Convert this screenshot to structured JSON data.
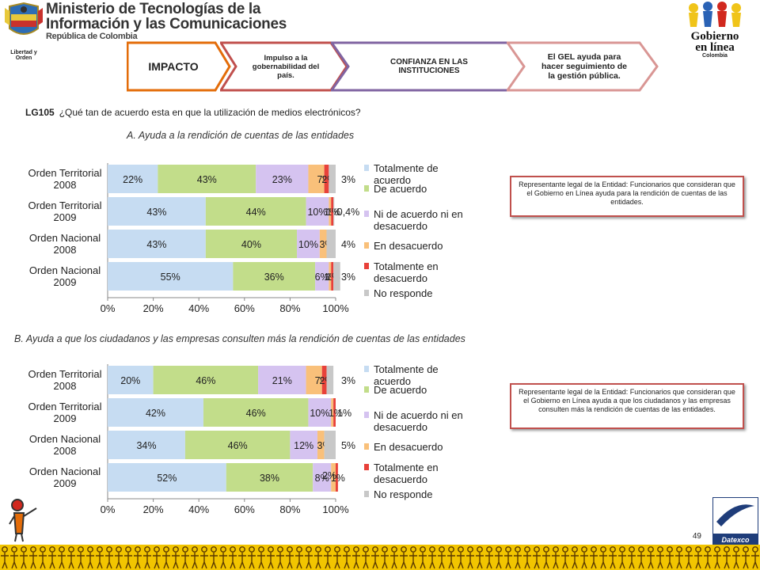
{
  "header": {
    "ministry_line1": "Ministerio de Tecnologías de la",
    "ministry_line2": "Información y las Comunicaciones",
    "ministry_line3": "República de Colombia",
    "crest_motto": "Libertad y Orden",
    "gel_logo_line1": "Gobierno en línea",
    "gel_logo_line2": "Colombia"
  },
  "chevrons": [
    {
      "label": "IMPACTO",
      "color": "#e36c09"
    },
    {
      "label": "Impulso a la gobernabilidad del país.",
      "color": "#c0504d"
    },
    {
      "label": "CONFIANZA EN LAS INSTITUCIONES",
      "color": "#8064a2"
    },
    {
      "label": "El GEL ayuda para hacer seguimiento de la gestión pública.",
      "color": "#d99694"
    }
  ],
  "question": {
    "code": "LG105",
    "text": "¿Qué  tan de acuerdo esta en que la utilización de medios electrónicos?"
  },
  "section_a": {
    "title": "A. Ayuda a la rendición de cuentas de las entidades",
    "note": "Representante legal de la Entidad: Funcionarios que consideran que el Gobierno en Línea ayuda para la rendición de cuentas de las entidades."
  },
  "section_b": {
    "title": "B. Ayuda a que los ciudadanos y las empresas consulten más la rendición de cuentas de las entidades",
    "note": "Representante legal de la Entidad: Funcionarios que consideran que el Gobierno en Línea ayuda a  que los ciudadanos y las empresas consulten más la rendición de cuentas de las entidades."
  },
  "page_number": "49",
  "footer_logo": "Datexco",
  "chart_data": [
    {
      "type": "bar",
      "orientation": "horizontal-stacked-100",
      "categories": [
        "Orden Territorial 2008",
        "Orden Territorial 2009",
        "Orden Nacional 2008",
        "Orden Nacional 2009"
      ],
      "series": [
        {
          "name": "Totalmente  de acuerdo",
          "values": [
            22,
            43,
            43,
            55
          ],
          "labels": [
            "22%",
            "43%",
            "43%",
            "55%"
          ],
          "color": "#c6dcf2"
        },
        {
          "name": "De acuerdo",
          "values": [
            43,
            44,
            40,
            36
          ],
          "labels": [
            "43%",
            "44%",
            "40%",
            "36%"
          ],
          "color": "#c2dd8a"
        },
        {
          "name": "Ni de acuerdo  ni en desacuerdo",
          "values": [
            23,
            10,
            10,
            6
          ],
          "labels": [
            "23%",
            "10%",
            "10%",
            "6%"
          ],
          "color": "#d5c3f0"
        },
        {
          "name": "En desacuerdo",
          "values": [
            7,
            1,
            3,
            1
          ],
          "labels": [
            "7%",
            "1%",
            "3%",
            "1%"
          ],
          "color": "#f9c07a"
        },
        {
          "name": "Totalmente en desacuerdo",
          "values": [
            2,
            1,
            0,
            1
          ],
          "labels": [
            "2%",
            "1%",
            "",
            "1%"
          ],
          "color": "#e8413a"
        },
        {
          "name": "No responde",
          "values": [
            3,
            0.4,
            4,
            3
          ],
          "labels": [
            "3%",
            "0,4%",
            "4%",
            "3%"
          ],
          "color": "#c8c8c8"
        }
      ],
      "xlim": [
        0,
        100
      ],
      "ticks": [
        "0%",
        "20%",
        "40%",
        "60%",
        "80%",
        "100%"
      ],
      "legend": "right"
    },
    {
      "type": "bar",
      "orientation": "horizontal-stacked-100",
      "categories": [
        "Orden Territorial 2008",
        "Orden Territorial 2009",
        "Orden Nacional 2008",
        "Orden Nacional 2009"
      ],
      "series": [
        {
          "name": "Totalmente  de acuerdo",
          "values": [
            20,
            42,
            34,
            52
          ],
          "labels": [
            "20%",
            "42%",
            "34%",
            "52%"
          ],
          "color": "#c6dcf2"
        },
        {
          "name": "De acuerdo",
          "values": [
            46,
            46,
            46,
            38
          ],
          "labels": [
            "46%",
            "46%",
            "46%",
            "38%"
          ],
          "color": "#c2dd8a"
        },
        {
          "name": "Ni de acuerdo  ni en desacuerdo",
          "values": [
            21,
            10,
            12,
            8
          ],
          "labels": [
            "21%",
            "10%",
            "12%",
            "8%"
          ],
          "color": "#d5c3f0"
        },
        {
          "name": "En desacuerdo",
          "values": [
            7,
            1,
            3,
            2
          ],
          "labels": [
            "7%",
            "",
            "3%",
            ""
          ],
          "color": "#f9c07a"
        },
        {
          "name": "Totalmente en desacuerdo",
          "values": [
            2,
            1,
            0,
            1
          ],
          "labels": [
            "2%",
            "1%",
            "",
            "1%"
          ],
          "color": "#e8413a"
        },
        {
          "name": "No responde",
          "values": [
            3,
            0,
            5,
            0
          ],
          "labels": [
            "3%",
            "",
            "5%",
            ""
          ],
          "color": "#c8c8c8"
        }
      ],
      "extra_labels": [
        "1%",
        "2%"
      ],
      "xlim": [
        0,
        100
      ],
      "ticks": [
        "0%",
        "20%",
        "40%",
        "60%",
        "80%",
        "100%"
      ],
      "legend": "right"
    }
  ]
}
